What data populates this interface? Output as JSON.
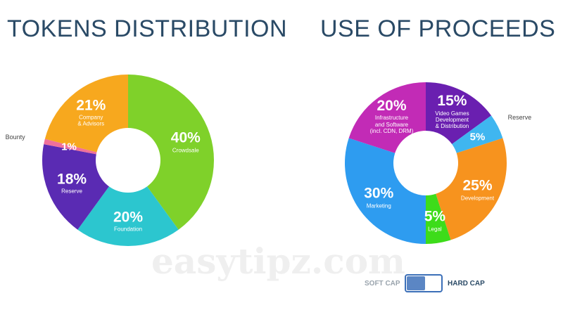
{
  "chart_data": [
    {
      "type": "donut",
      "title": "TOKENS DISTRIBUTION",
      "categories": [
        "Crowdsale",
        "Foundation",
        "Reserve",
        "Bounty",
        "Company\n& Advisors"
      ],
      "values": [
        40,
        20,
        18,
        1,
        21
      ],
      "value_labels": [
        "40%",
        "20%",
        "18%",
        "1%",
        "21%"
      ],
      "colors": [
        "#7fd12a",
        "#2cc6cf",
        "#5a2bb3",
        "#f0709a",
        "#f7a81e"
      ]
    },
    {
      "type": "donut",
      "title": "USE OF PROCEEDS",
      "categories": [
        "Video Games\nDevelopment\n& Distribution",
        "Reserve",
        "Development",
        "Legal",
        "Marketing",
        "Infrastructure\nand Software\n(incl. CDN, DRM)"
      ],
      "values": [
        15,
        5,
        25,
        5,
        30,
        20
      ],
      "value_labels": [
        "15%",
        "5%",
        "25%",
        "5%",
        "30%",
        "20%"
      ],
      "colors": [
        "#6a1fb0",
        "#3fb6f0",
        "#f7931e",
        "#3ddc1a",
        "#2e9cf0",
        "#c22bb6"
      ]
    }
  ],
  "toggle": {
    "left": "SOFT CAP",
    "right": "HARD CAP"
  },
  "watermark": "easytipz.com"
}
